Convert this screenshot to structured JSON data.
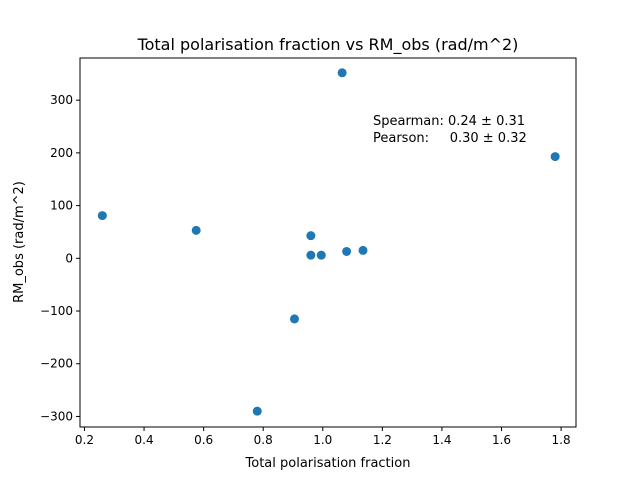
{
  "chart_data": {
    "type": "scatter",
    "title": "Total polarisation fraction vs RM_obs (rad/m^2)",
    "xlabel": "Total polarisation fraction",
    "ylabel": "RM_obs (rad/m^2)",
    "xlim": [
      0.185,
      1.85
    ],
    "ylim": [
      -320,
      380
    ],
    "xticks": [
      0.2,
      0.4,
      0.6,
      0.8,
      1.0,
      1.2,
      1.4,
      1.6,
      1.8
    ],
    "xtick_labels": [
      "0.2",
      "0.4",
      "0.6",
      "0.8",
      "1.0",
      "1.2",
      "1.4",
      "1.6",
      "1.8"
    ],
    "yticks": [
      -300,
      -200,
      -100,
      0,
      100,
      200,
      300
    ],
    "ytick_labels": [
      "−300",
      "−200",
      "−100",
      "0",
      "100",
      "200",
      "300"
    ],
    "grid": false,
    "marker_color": "#1f77b4",
    "series": [
      {
        "x": [
          0.26,
          0.575,
          0.78,
          0.905,
          0.96,
          0.96,
          0.995,
          1.065,
          1.08,
          1.135,
          1.78
        ],
        "y": [
          81,
          53,
          -290,
          -115,
          43,
          6,
          6,
          352,
          13,
          15,
          193
        ]
      }
    ],
    "annotations": [
      "Spearman: 0.24 ± 0.31",
      "Pearson:     0.30 ± 0.32"
    ]
  }
}
